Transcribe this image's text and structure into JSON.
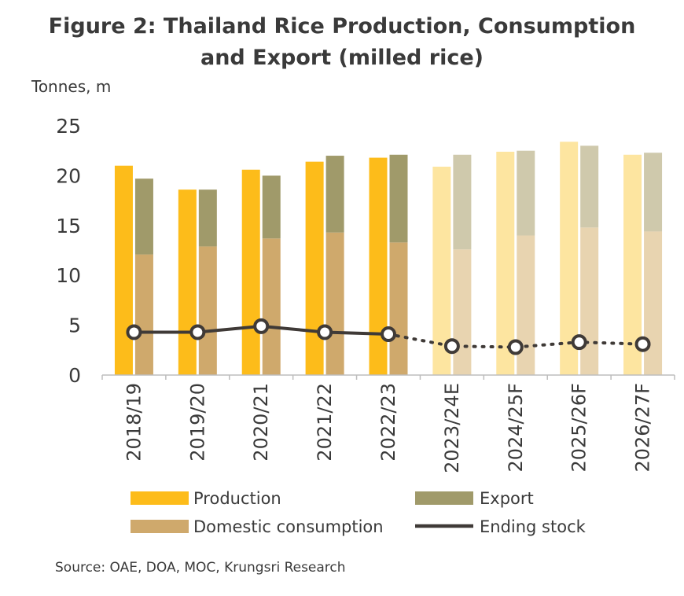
{
  "title_line1": "Figure 2: Thailand Rice Production, Consumption",
  "title_line2": "and Export (milled rice)",
  "unit_label": "Tonnes, m",
  "source": "Source: OAE, DOA, MOC, Krungsri Research",
  "legend": {
    "production": "Production",
    "export": "Export",
    "domestic": "Domestic consumption",
    "stock": "Ending stock"
  },
  "colors": {
    "production": "#FDBC1A",
    "production_forecast": "#FDE5A0",
    "domestic": "#CFA96C",
    "domestic_forecast": "#E8D4B0",
    "export": "#A09A6A",
    "export_forecast": "#CFC9AC",
    "stock": "#3f3a37",
    "axis": "#bdbdbd"
  },
  "chart_data": {
    "type": "bar",
    "categories": [
      "2018/19",
      "2019/20",
      "2020/21",
      "2021/22",
      "2022/23",
      "2023/24E",
      "2024/25F",
      "2025/26F",
      "2026/27F"
    ],
    "forecast_from_index": 5,
    "ylim": [
      0,
      25
    ],
    "yticks": [
      0,
      5,
      10,
      15,
      20,
      25
    ],
    "series": [
      {
        "name": "Production",
        "kind": "bar",
        "values": [
          21.0,
          18.6,
          20.6,
          21.4,
          21.8,
          20.9,
          22.4,
          23.4,
          22.1
        ]
      },
      {
        "name": "Domestic consumption",
        "kind": "stacked-bar-bottom",
        "values": [
          12.1,
          12.9,
          13.7,
          14.3,
          13.3,
          12.6,
          14.0,
          14.8,
          14.4
        ]
      },
      {
        "name": "Export",
        "kind": "stacked-bar-top",
        "values": [
          7.6,
          5.7,
          6.3,
          7.7,
          8.8,
          9.5,
          8.5,
          8.2,
          7.9
        ]
      },
      {
        "name": "Ending stock",
        "kind": "line",
        "values": [
          4.3,
          4.3,
          4.9,
          4.3,
          4.1,
          2.9,
          2.8,
          3.3,
          3.1
        ]
      }
    ]
  }
}
